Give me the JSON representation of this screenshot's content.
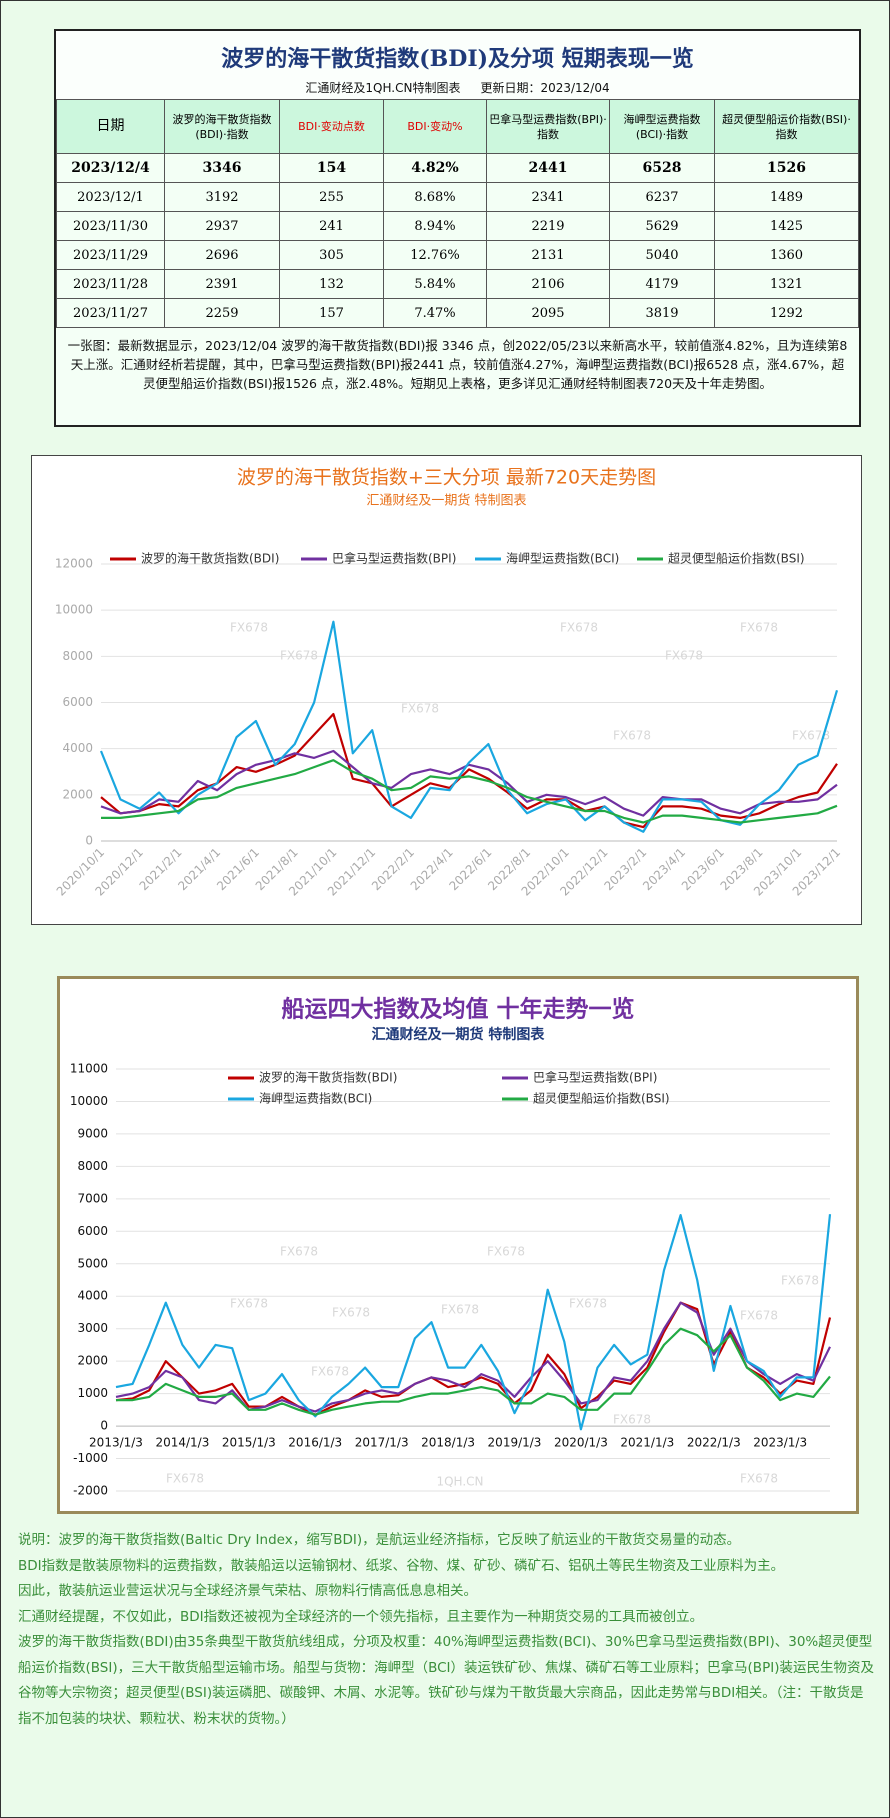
{
  "header": {
    "title": "波罗的海干散货指数(BDI)及分项  短期表现一览",
    "source": "汇通财经及1QH.CN特制图表",
    "updated": "更新日期：2023/12/04"
  },
  "table": {
    "columns": [
      "日期",
      "波罗的海干散货指数(BDI)·指数",
      "BDI·变动点数",
      "BDI·变动%",
      "巴拿马型运费指数(BPI)·指数",
      "海岬型运费指数(BCI)·指数",
      "超灵便型船运价指数(BSI)·指数"
    ],
    "rows": [
      [
        "2023/12/4",
        "3346",
        "154",
        "4.82%",
        "2441",
        "6528",
        "1526"
      ],
      [
        "2023/12/1",
        "3192",
        "255",
        "8.68%",
        "2341",
        "6237",
        "1489"
      ],
      [
        "2023/11/30",
        "2937",
        "241",
        "8.94%",
        "2219",
        "5629",
        "1425"
      ],
      [
        "2023/11/29",
        "2696",
        "305",
        "12.76%",
        "2131",
        "5040",
        "1360"
      ],
      [
        "2023/11/28",
        "2391",
        "132",
        "5.84%",
        "2106",
        "4179",
        "1321"
      ],
      [
        "2023/11/27",
        "2259",
        "157",
        "7.47%",
        "2095",
        "3819",
        "1292"
      ]
    ]
  },
  "summary": "一张图：最新数据显示，2023/12/04 波罗的海干散货指数(BDI)报 3346 点，创2022/05/23以来新高水平，较前值涨4.82%，且为连续第8天上涨。汇通财经析若提醒，其中，巴拿马型运费指数(BPI)报2441 点，较前值涨4.27%，海岬型运费指数(BCI)报6528 点，涨4.67%，超灵便型船运价指数(BSI)报1526 点，涨2.48%。短期见上表格，更多详见汇通财经特制图表720天及十年走势图。",
  "chart_data": [
    {
      "type": "line",
      "title": "波罗的海干散货指数+三大分项  最新720天走势图",
      "subtitle": "汇通财经及一期货  特制图表",
      "categories": [
        "2020/10/1",
        null,
        "2020/12/1",
        null,
        "2021/2/1",
        null,
        "2021/4/1",
        null,
        "2021/6/1",
        null,
        "2021/8/1",
        null,
        "2021/10/1",
        null,
        "2021/12/1",
        null,
        "2022/2/1",
        null,
        "2022/4/1",
        null,
        "2022/6/1",
        null,
        "2022/8/1",
        null,
        "2022/10/1",
        null,
        "2022/12/1",
        null,
        "2023/2/1",
        null,
        "2023/4/1",
        null,
        "2023/6/1",
        null,
        "2023/8/1",
        null,
        "2023/10/1",
        null,
        "2023/12/1"
      ],
      "series": [
        {
          "name": "波罗的海干散货指数(BDI)",
          "color": "#c00000",
          "values": [
            1900,
            1200,
            1300,
            1600,
            1500,
            2200,
            2500,
            3200,
            3000,
            3300,
            3700,
            4600,
            5500,
            2700,
            2500,
            1500,
            2000,
            2500,
            2300,
            3100,
            2700,
            2100,
            1400,
            1800,
            1800,
            1300,
            1500,
            800,
            600,
            1500,
            1500,
            1400,
            1100,
            1000,
            1200,
            1600,
            1900,
            2100,
            3346
          ]
        },
        {
          "name": "巴拿马型运费指数(BPI)",
          "color": "#7030a0",
          "values": [
            1500,
            1200,
            1300,
            1800,
            1700,
            2600,
            2200,
            2900,
            3300,
            3500,
            3800,
            3600,
            3900,
            3200,
            2500,
            2300,
            2900,
            3100,
            2900,
            3300,
            3100,
            2500,
            1700,
            2000,
            1900,
            1600,
            1900,
            1400,
            1100,
            1900,
            1800,
            1800,
            1400,
            1200,
            1600,
            1700,
            1700,
            1800,
            2441
          ]
        },
        {
          "name": "海岬型运费指数(BCI)",
          "color": "#1aa7e0",
          "values": [
            3900,
            1800,
            1400,
            2100,
            1200,
            2000,
            2500,
            4500,
            5200,
            3300,
            4200,
            6000,
            9500,
            3800,
            4800,
            1500,
            1000,
            2300,
            2200,
            3400,
            4200,
            2200,
            1200,
            1600,
            1800,
            900,
            1500,
            800,
            400,
            1800,
            1800,
            1700,
            900,
            700,
            1600,
            2200,
            3300,
            3700,
            6528
          ]
        },
        {
          "name": "超灵便型船运价指数(BSI)",
          "color": "#22aa44",
          "values": [
            1000,
            1000,
            1100,
            1200,
            1300,
            1800,
            1900,
            2300,
            2500,
            2700,
            2900,
            3200,
            3500,
            3000,
            2700,
            2200,
            2300,
            2800,
            2700,
            2800,
            2600,
            2300,
            1900,
            1700,
            1500,
            1300,
            1300,
            1000,
            800,
            1100,
            1100,
            1000,
            900,
            800,
            900,
            1000,
            1100,
            1200,
            1526
          ]
        }
      ],
      "ylim": [
        0,
        12000
      ],
      "yticks": [
        0,
        2000,
        4000,
        6000,
        8000,
        10000,
        12000
      ],
      "grid": true,
      "legend": "top",
      "watermarks": [
        "FX678",
        "FX678",
        "FX678",
        "FX678",
        "FX678",
        "FX678",
        "FX678",
        "FX678"
      ]
    },
    {
      "type": "line",
      "title": "船运四大指数及均值 十年走势一览",
      "subtitle": "汇通财经及一期货 特制图表",
      "categories": [
        "2013/1/3",
        null,
        null,
        null,
        "2014/1/3",
        null,
        null,
        null,
        "2015/1/3",
        null,
        null,
        null,
        "2016/1/3",
        null,
        null,
        null,
        "2017/1/3",
        null,
        null,
        null,
        "2018/1/3",
        null,
        null,
        null,
        "2019/1/3",
        null,
        null,
        null,
        "2020/1/3",
        null,
        null,
        null,
        "2021/1/3",
        null,
        null,
        null,
        "2022/1/3",
        null,
        null,
        null,
        "2023/1/3",
        null,
        null,
        null
      ],
      "series": [
        {
          "name": "波罗的海干散货指数(BDI)",
          "color": "#c00000",
          "values": [
            800,
            850,
            1100,
            2000,
            1500,
            1000,
            1100,
            1300,
            600,
            600,
            900,
            600,
            350,
            600,
            800,
            1100,
            900,
            950,
            1300,
            1500,
            1200,
            1300,
            1500,
            1300,
            700,
            1100,
            2200,
            1600,
            550,
            900,
            1400,
            1300,
            1800,
            2900,
            3800,
            3600,
            1900,
            2900,
            1800,
            1500,
            1000,
            1400,
            1300,
            3346
          ]
        },
        {
          "name": "巴拿马型运费指数(BPI)",
          "color": "#7030a0",
          "values": [
            900,
            1000,
            1200,
            1700,
            1500,
            800,
            700,
            1100,
            500,
            600,
            800,
            600,
            450,
            700,
            800,
            1000,
            1100,
            1000,
            1300,
            1500,
            1400,
            1200,
            1600,
            1400,
            900,
            1500,
            2000,
            1400,
            700,
            800,
            1500,
            1400,
            2000,
            3000,
            3800,
            3500,
            2200,
            3000,
            2000,
            1600,
            1300,
            1600,
            1400,
            2441
          ]
        },
        {
          "name": "海岬型运费指数(BCI)",
          "color": "#1aa7e0",
          "values": [
            1200,
            1300,
            2500,
            3800,
            2500,
            1800,
            2500,
            2400,
            800,
            1000,
            1600,
            800,
            300,
            900,
            1300,
            1800,
            1200,
            1200,
            2700,
            3200,
            1800,
            1800,
            2500,
            1700,
            400,
            1400,
            4200,
            2600,
            -100,
            1800,
            2500,
            1900,
            2200,
            4800,
            6500,
            4500,
            1700,
            3700,
            2000,
            1700,
            900,
            1500,
            1500,
            6528
          ]
        },
        {
          "name": "超灵便型船运价指数(BSI)",
          "color": "#22aa44",
          "values": [
            800,
            800,
            900,
            1300,
            1100,
            900,
            900,
            1000,
            500,
            500,
            700,
            500,
            350,
            500,
            600,
            700,
            750,
            750,
            900,
            1000,
            1000,
            1100,
            1200,
            1100,
            700,
            700,
            1000,
            900,
            500,
            500,
            1000,
            1000,
            1700,
            2500,
            3000,
            2800,
            2300,
            2800,
            1800,
            1400,
            800,
            1000,
            900,
            1526
          ]
        }
      ],
      "ylim": [
        -2000,
        11000
      ],
      "yticks": [
        -2000,
        -1000,
        0,
        1000,
        2000,
        3000,
        4000,
        5000,
        6000,
        7000,
        8000,
        9000,
        10000,
        11000
      ],
      "grid": true,
      "legend": "top",
      "watermarks": [
        "FX678",
        "FX678",
        "FX678",
        "FX678",
        "FX678",
        "FX678",
        "FX678",
        "FX678",
        "FX678",
        "FX678",
        "FX678",
        "FX678",
        "1QH.CN"
      ]
    }
  ],
  "notes": [
    "说明：波罗的海干散货指数(Baltic Dry Index，缩写BDI)，是航运业经济指标，它反映了航运业的干散货交易量的动态。",
    "BDI指数是散装原物料的运费指数，散装船运以运输钢材、纸浆、谷物、煤、矿砂、磷矿石、铝矾土等民生物资及工业原料为主。",
    "因此，散装航运业营运状况与全球经济景气荣枯、原物料行情高低息息相关。",
    "汇通财经提醒，不仅如此，BDI指数还被视为全球经济的一个领先指标，且主要作为一种期货交易的工具而被创立。",
    "波罗的海干散货指数(BDI)由35条典型干散货航线组成，分项及权重：40%海岬型运费指数(BCI)、30%巴拿马型运费指数(BPI)、30%超灵便型船运价指数(BSI)，三大干散货船型运输市场。船型与货物：海岬型（BCI）装运铁矿砂、焦煤、磷矿石等工业原料；巴拿马(BPI)装运民生物资及谷物等大宗物资；超灵便型(BSI)装运磷肥、碳酸钾、木屑、水泥等。铁矿砂与煤为干散货最大宗商品，因此走势常与BDI相关。（注：干散货是指不加包装的块状、颗粒状、粉末状的货物。）"
  ]
}
